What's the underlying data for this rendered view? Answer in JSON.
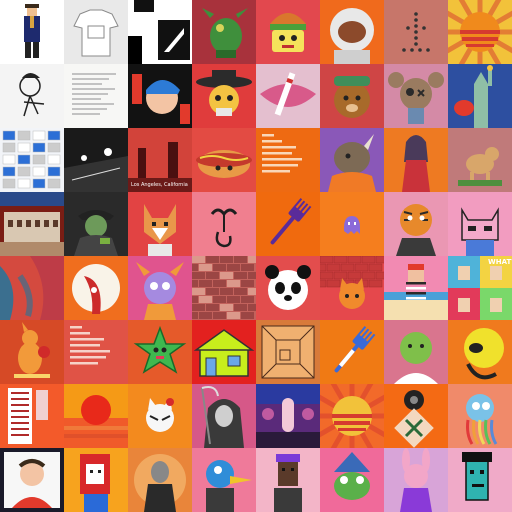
{
  "gallery": {
    "rows": 8,
    "cols": 8,
    "tiles": [
      {
        "name": "pixel-character-blue-suit",
        "bg": "#ffffff",
        "motif": "pixel-person",
        "fg": "#1e2a6e",
        "accent": "#d9a441"
      },
      {
        "name": "white-tshirt-drawing",
        "bg": "#e9e9e9",
        "motif": "shirt",
        "fg": "#ffffff",
        "accent": "#8a8a8a"
      },
      {
        "name": "black-white-geometric",
        "bg": "#ffffff",
        "motif": "geometric",
        "fg": "#111111",
        "accent": "#111111"
      },
      {
        "name": "green-robot-dragon",
        "bg": "#a8323c",
        "motif": "creature",
        "fg": "#3f8f3c",
        "accent": "#d8d35a"
      },
      {
        "name": "burger-head-character",
        "bg": "#e2484e",
        "motif": "burger-face",
        "fg": "#d9772d",
        "accent": "#f5e35b"
      },
      {
        "name": "astronaut-helmet",
        "bg": "#f06a1c",
        "motif": "helmet",
        "fg": "#e8e8e8",
        "accent": "#8c4a2b"
      },
      {
        "name": "dotted-pattern-pink",
        "bg": "#c7766a",
        "motif": "dots",
        "fg": "#333333",
        "accent": "#c7766a"
      },
      {
        "name": "retro-sunset-stripes",
        "bg": "#f2c23a",
        "motif": "sun-stripes",
        "fg": "#f08a1c",
        "accent": "#d63a2f"
      },
      {
        "name": "ink-sketch-figure",
        "bg": "#f4f4f4",
        "motif": "sketch",
        "fg": "#222222",
        "accent": "#999999"
      },
      {
        "name": "handwritten-note",
        "bg": "#f7f7f5",
        "motif": "note",
        "fg": "#6b6b6b",
        "accent": "#dddddd"
      },
      {
        "name": "graffiti-portrait",
        "bg": "#121212",
        "motif": "graffiti",
        "fg": "#e23a2c",
        "accent": "#2d7bd6"
      },
      {
        "name": "skull-sombrero",
        "bg": "#e03c3c",
        "motif": "skull-hat",
        "fg": "#2b2b2b",
        "accent": "#f3c342"
      },
      {
        "name": "lips-candy-cane",
        "bg": "#e4bfcf",
        "motif": "lips",
        "fg": "#d85a8a",
        "accent": "#ffffff"
      },
      {
        "name": "bear-green-cap",
        "bg": "#cf4545",
        "motif": "bear",
        "fg": "#a86a2a",
        "accent": "#3f8e5a"
      },
      {
        "name": "voodoo-doll-pink",
        "bg": "#d48aa6",
        "motif": "voodoo",
        "fg": "#9a7b60",
        "accent": "#2a2a2a"
      },
      {
        "name": "statue-liberty-cartoon",
        "bg": "#2d4fa0",
        "motif": "statue",
        "fg": "#8fbfa6",
        "accent": "#e23a2c"
      },
      {
        "name": "website-screenshot-collage",
        "bg": "#f2f4f8",
        "motif": "collage",
        "fg": "#2c6fd6",
        "accent": "#cccccc"
      },
      {
        "name": "night-road-photo",
        "bg": "#1a1a1a",
        "motif": "night",
        "fg": "#ffffff",
        "accent": "#555555"
      },
      {
        "name": "los-angeles-red-photo",
        "bg": "#6b1a18",
        "motif": "city-red",
        "fg": "#d2433a",
        "accent": "#ffffff",
        "caption": "Los Angeles, California"
      },
      {
        "name": "hotdog-character",
        "bg": "#e34b43",
        "motif": "hotdog",
        "fg": "#e89a46",
        "accent": "#c43a2c"
      },
      {
        "name": "text-metadata-card-orange",
        "bg": "#ee6a12",
        "motif": "textcard",
        "fg": "#f9d7b8",
        "accent": "#ee6a12"
      },
      {
        "name": "rhino-orange-hoodie",
        "bg": "#8a58b8",
        "motif": "rhino",
        "fg": "#7d6a55",
        "accent": "#f07a26"
      },
      {
        "name": "woman-red-dress",
        "bg": "#ee7a22",
        "motif": "woman",
        "fg": "#c9323a",
        "accent": "#4a3a5a"
      },
      {
        "name": "pixel-dog-grass",
        "bg": "#c07a7a",
        "motif": "dog",
        "fg": "#d8a66a",
        "accent": "#4e8f3e"
      },
      {
        "name": "ruined-brick-building",
        "bg": "#7a1d14",
        "motif": "ruins",
        "fg": "#d9c8b2",
        "accent": "#5a3a2a"
      },
      {
        "name": "cowboy-zombie-dark",
        "bg": "#2a2a2a",
        "motif": "zombie",
        "fg": "#6d9a5a",
        "accent": "#444444"
      },
      {
        "name": "fox-portrait-pixel",
        "bg": "#e24343",
        "motif": "fox",
        "fg": "#e9974a",
        "accent": "#ffffff"
      },
      {
        "name": "ear-question-mark",
        "bg": "#f07f8f",
        "motif": "ear-hook",
        "fg": "#1e1e1e",
        "accent": "#f07f8f"
      },
      {
        "name": "purple-fork",
        "bg": "#f06a0e",
        "motif": "fork",
        "fg": "#5a2b9a",
        "accent": "#f06a0e"
      },
      {
        "name": "small-purple-ghost",
        "bg": "#f57e1e",
        "motif": "ghost",
        "fg": "#8b6ad8",
        "accent": "#ffffff"
      },
      {
        "name": "tiger-suit-character",
        "bg": "#ea97b3",
        "motif": "tiger",
        "fg": "#e7892b",
        "accent": "#2a2a2a"
      },
      {
        "name": "pink-cat-pixel",
        "bg": "#f29cc0",
        "motif": "cat",
        "fg": "#f2a9c9",
        "accent": "#222222"
      },
      {
        "name": "blue-red-abstract",
        "bg": "#d44a3f",
        "motif": "abstract",
        "fg": "#3b6f8f",
        "accent": "#b8384a"
      },
      {
        "name": "red-flower-face",
        "bg": "#f06e1e",
        "motif": "flower-face",
        "fg": "#cc2b2b",
        "accent": "#f9f3e8"
      },
      {
        "name": "purple-horn-creature",
        "bg": "#e0548e",
        "motif": "horn-creature",
        "fg": "#a58ae0",
        "accent": "#f09a3a"
      },
      {
        "name": "brick-noise-texture",
        "bg": "#c2625c",
        "motif": "bricks",
        "fg": "#8a3a3a",
        "accent": "#e6b0a0"
      },
      {
        "name": "panda-portrait",
        "bg": "#e34d4d",
        "motif": "panda",
        "fg": "#ffffff",
        "accent": "#111111"
      },
      {
        "name": "cat-on-brick-wall",
        "bg": "#e5484c",
        "motif": "cat-wall",
        "fg": "#f08a2c",
        "accent": "#c63a3a"
      },
      {
        "name": "sailor-pixel-beach",
        "bg": "#f28ab2",
        "motif": "sailor",
        "fg": "#2a2a2a",
        "accent": "#e23a2c"
      },
      {
        "name": "what-question-grid",
        "bg": "#f36c8a",
        "motif": "what",
        "fg": "#ffffff",
        "accent": "#4fb3d9",
        "caption": "WHAT?"
      },
      {
        "name": "kangaroo-boxer",
        "bg": "#d64a26",
        "motif": "kangaroo",
        "fg": "#f29a3a",
        "accent": "#f9d66a"
      },
      {
        "name": "text-metadata-card-red",
        "bg": "#e05346",
        "motif": "textcard",
        "fg": "#f6d2c8",
        "accent": "#e05346"
      },
      {
        "name": "green-star-character",
        "bg": "#e55a2a",
        "motif": "star",
        "fg": "#3fb84f",
        "accent": "#e23a5a"
      },
      {
        "name": "pixel-house-red",
        "bg": "#e3211f",
        "motif": "house",
        "fg": "#c8ee1c",
        "accent": "#333333"
      },
      {
        "name": "sketch-room-drawing",
        "bg": "#d87a3a",
        "motif": "room-sketch",
        "fg": "#4a2a1a",
        "accent": "#f0b070"
      },
      {
        "name": "blue-white-fork",
        "bg": "#f07a14",
        "motif": "fork",
        "fg": "#3a6ad8",
        "accent": "#ffffff"
      },
      {
        "name": "bald-green-man",
        "bg": "#d9758e",
        "motif": "bald-man",
        "fg": "#7fbf4a",
        "accent": "#ffffff"
      },
      {
        "name": "yellow-ball-creature",
        "bg": "#f07a1e",
        "motif": "yellow-ball",
        "fg": "#f0e12c",
        "accent": "#222222"
      },
      {
        "name": "book-page-orange",
        "bg": "#f35a2a",
        "motif": "document",
        "fg": "#ffffff",
        "accent": "#b02a2a"
      },
      {
        "name": "red-sun-horizon",
        "bg": "#f59a16",
        "motif": "red-sun",
        "fg": "#e8291a",
        "accent": "#f59a16"
      },
      {
        "name": "white-cat-mask",
        "bg": "#f38a1e",
        "motif": "white-cat",
        "fg": "#f7f7f7",
        "accent": "#d62a2a"
      },
      {
        "name": "grim-reaper-cyborg",
        "bg": "#d65888",
        "motif": "reaper",
        "fg": "#3a3a3a",
        "accent": "#cfcfcf"
      },
      {
        "name": "purple-dream-scene",
        "bg": "#5a2a7a",
        "motif": "dream",
        "fg": "#f3c9d8",
        "accent": "#2a1a3a"
      },
      {
        "name": "sun-rays-stripes",
        "bg": "#f26a2a",
        "motif": "sun-stripes",
        "fg": "#f2c23a",
        "accent": "#d63a2f"
      },
      {
        "name": "x-pattern-tile",
        "bg": "#f46a14",
        "motif": "x-tile",
        "fg": "#ffffff",
        "accent": "#2a6a3a"
      },
      {
        "name": "rainbow-octopus",
        "bg": "#f08a6a",
        "motif": "octopus",
        "fg": "#7ac2e8",
        "accent": "#f0d85a"
      },
      {
        "name": "man-red-shirt-portrait",
        "bg": "#1a1a2a",
        "motif": "man-portrait",
        "fg": "#e23a2c",
        "accent": "#f3c4a4"
      },
      {
        "name": "pixel-woman-red-hair",
        "bg": "#f7a31e",
        "motif": "pixel-woman",
        "fg": "#d8282a",
        "accent": "#ffffff"
      },
      {
        "name": "dark-female-portrait",
        "bg": "#e9853a",
        "motif": "dark-figure",
        "fg": "#2a2a2a",
        "accent": "#888888"
      },
      {
        "name": "duck-with-cigar",
        "bg": "#ef7a9a",
        "motif": "duck",
        "fg": "#2f8dd8",
        "accent": "#f0c52a"
      },
      {
        "name": "pixel-man-purple-hat",
        "bg": "#f3b5c8",
        "motif": "pixel-man",
        "fg": "#5a3a2a",
        "accent": "#7a3ad8"
      },
      {
        "name": "frog-blue-hat",
        "bg": "#f06a9a",
        "motif": "frog",
        "fg": "#5ab04a",
        "accent": "#3a6ab8"
      },
      {
        "name": "pink-bunny-dancer",
        "bg": "#d8a4d8",
        "motif": "bunny",
        "fg": "#f2a6c8",
        "accent": "#8a3ad8"
      },
      {
        "name": "pixel-punk-teal",
        "bg": "#f0aac8",
        "motif": "punk",
        "fg": "#2fb3b0",
        "accent": "#111111"
      }
    ]
  }
}
